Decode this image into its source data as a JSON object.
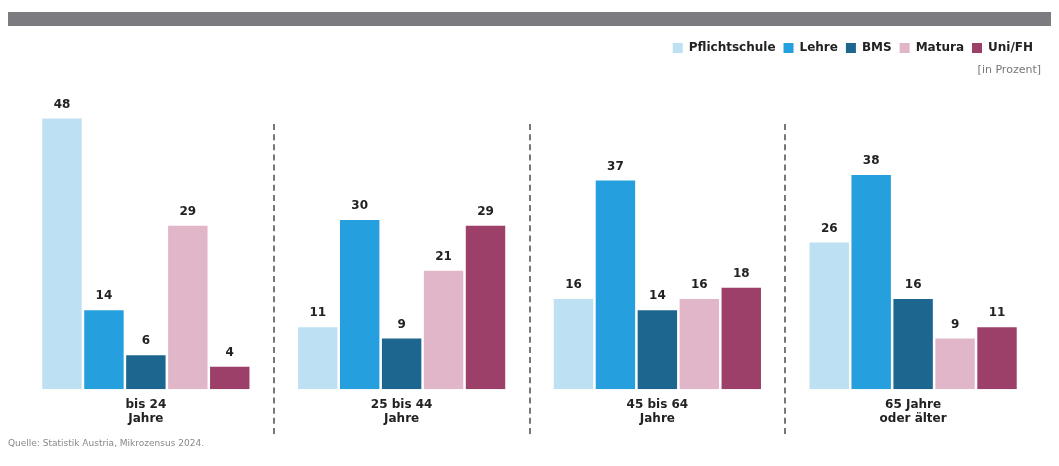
{
  "chart_data": {
    "type": "bar",
    "subtitle": "[in Prozent]",
    "categories": [
      "bis 24\nJahre",
      "25 bis 44\nJahre",
      "45 bis 64\nJahre",
      "65 Jahre\noder älter"
    ],
    "series": [
      {
        "name": "Pflichtschule",
        "color": "#bde0f3",
        "values": [
          48,
          11,
          16,
          26
        ]
      },
      {
        "name": "Lehre",
        "color": "#259fde",
        "values": [
          14,
          30,
          37,
          38
        ]
      },
      {
        "name": "BMS",
        "color": "#1c6690",
        "values": [
          6,
          9,
          14,
          16
        ]
      },
      {
        "name": "Matura",
        "color": "#e2b6c9",
        "values": [
          29,
          21,
          16,
          9
        ]
      },
      {
        "name": "Uni/FH",
        "color": "#9c3f69",
        "values": [
          4,
          29,
          18,
          11
        ]
      }
    ],
    "data_labels": true,
    "grid": false,
    "legend": "top right",
    "annotations": [
      "Quelle: Statistik Austria, Mikrozensus 2024."
    ]
  }
}
